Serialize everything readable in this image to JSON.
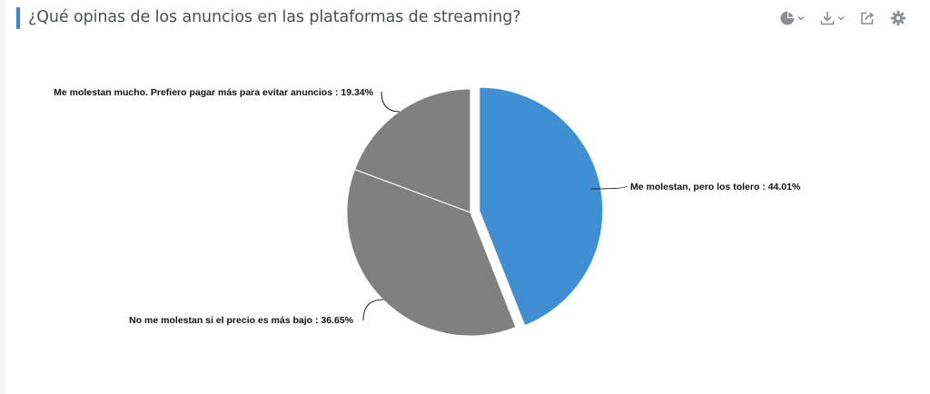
{
  "header": {
    "title": "¿Qué opinas de los anuncios en las plataformas de streaming?",
    "tools": [
      {
        "icon": "pie-chart-icon",
        "has_dropdown": true
      },
      {
        "icon": "download-icon",
        "has_dropdown": true
      },
      {
        "icon": "share-icon",
        "has_dropdown": false
      },
      {
        "icon": "gear-icon",
        "has_dropdown": false
      }
    ]
  },
  "colors": {
    "accent": "#3b82d6",
    "highlight_slice": "#3f8fd2",
    "other_slices": "#808080"
  },
  "chart_data": {
    "type": "pie",
    "title": "¿Qué opinas de los anuncios en las plataformas de streaming?",
    "slices": [
      {
        "label": "Me molestan, pero los tolero",
        "value": 44.01,
        "color": "#3f8fd2",
        "exploded": true
      },
      {
        "label": "No me molestan si el precio es más bajo",
        "value": 36.65,
        "color": "#808080",
        "exploded": false
      },
      {
        "label": "Me molestan mucho. Prefiero pagar más para evitar anuncios",
        "value": 19.34,
        "color": "#808080",
        "exploded": false
      }
    ],
    "label_format": "{label} : {value}%",
    "start_angle_deg": 0,
    "direction": "clockwise"
  }
}
